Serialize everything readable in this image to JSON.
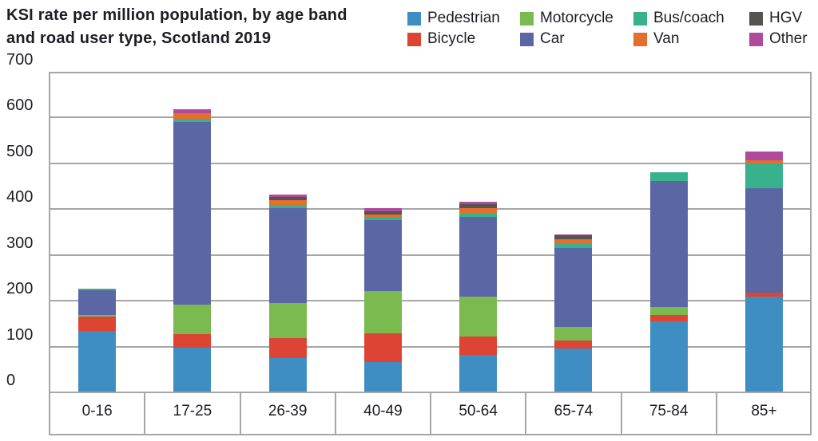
{
  "title": {
    "line1": "KSI rate per million population, by age band",
    "line2": "and road user type, Scotland 2019"
  },
  "colors": {
    "grid": "#A6A6A6",
    "text": "#1D1D24",
    "background": "#FFFFFF"
  },
  "chart_data": {
    "type": "bar",
    "stacked": true,
    "title": "KSI rate per million population, by age band and road user type, Scotland 2019",
    "xlabel": "",
    "ylabel": "KSI rate per million population",
    "ylim": [
      0,
      700
    ],
    "yticks": [
      0,
      100,
      200,
      300,
      400,
      500,
      600,
      700
    ],
    "grid": "horizontal",
    "legend_position": "top-right",
    "legend_rows": [
      [
        "Pedestrian",
        "Motorcycle",
        "Bus/coach",
        "HGV"
      ],
      [
        "Bicycle",
        "Car",
        "Van",
        "Other"
      ]
    ],
    "categories": [
      "0-16",
      "17-25",
      "26-39",
      "40-49",
      "50-64",
      "65-74",
      "75-84",
      "85+"
    ],
    "series": [
      {
        "name": "Pedestrian",
        "color": "#3E8EC4",
        "values": [
          133,
          96,
          74,
          65,
          80,
          94,
          154,
          207
        ]
      },
      {
        "name": "Bicycle",
        "color": "#DE4433",
        "values": [
          30,
          30,
          43,
          63,
          40,
          18,
          13,
          9
        ]
      },
      {
        "name": "Motorcycle",
        "color": "#7BBA4E",
        "values": [
          5,
          64,
          76,
          92,
          87,
          29,
          18,
          0
        ]
      },
      {
        "name": "Car",
        "color": "#5B67A5",
        "values": [
          54,
          398,
          208,
          154,
          175,
          173,
          275,
          228
        ]
      },
      {
        "name": "Bus/coach",
        "color": "#38B28D",
        "values": [
          3,
          8,
          5,
          5,
          7,
          10,
          19,
          54
        ]
      },
      {
        "name": "Van",
        "color": "#E36E2E",
        "values": [
          0,
          12,
          12,
          8,
          11,
          9,
          0,
          7
        ]
      },
      {
        "name": "HGV",
        "color": "#575350",
        "values": [
          0,
          0,
          7,
          7,
          10,
          8,
          0,
          0
        ]
      },
      {
        "name": "Other",
        "color": "#AF4A9C",
        "values": [
          0,
          8,
          5,
          6,
          5,
          3,
          0,
          20
        ]
      }
    ],
    "totals": [
      225,
      616,
      430,
      400,
      415,
      344,
      479,
      525
    ]
  }
}
